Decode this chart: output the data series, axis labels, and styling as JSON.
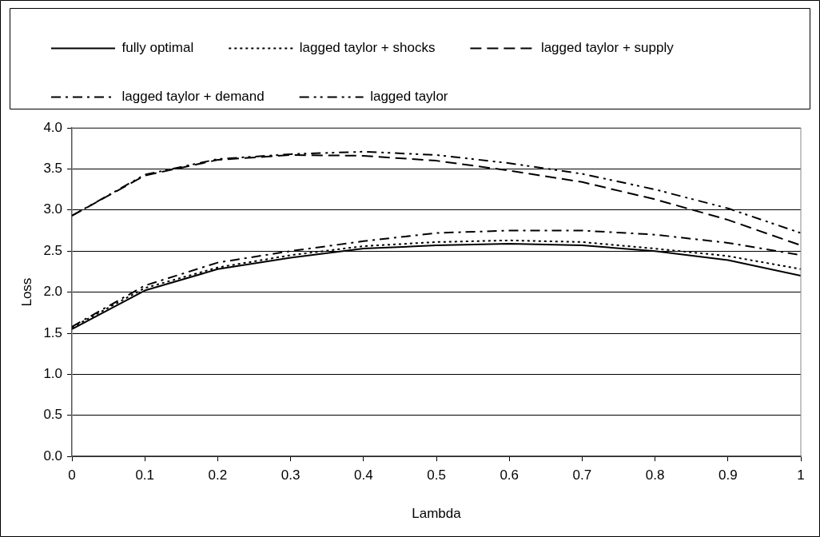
{
  "chart_data": {
    "type": "line",
    "xlabel": "Lambda",
    "ylabel": "Loss",
    "x": [
      0,
      0.1,
      0.2,
      0.3,
      0.4,
      0.5,
      0.6,
      0.7,
      0.8,
      0.9,
      1
    ],
    "xlim": [
      0,
      1
    ],
    "xticks": [
      0,
      0.1,
      0.2,
      0.3,
      0.4,
      0.5,
      0.6,
      0.7,
      0.8,
      0.9,
      1
    ],
    "ylim": [
      0,
      4
    ],
    "yticks": [
      {
        "value": 0,
        "label": "0.0"
      },
      {
        "value": 0.5,
        "label": "0.5"
      },
      {
        "value": 1,
        "label": "1.0"
      },
      {
        "value": 1.5,
        "label": "1.5"
      },
      {
        "value": 2,
        "label": "2.0"
      },
      {
        "value": 2.5,
        "label": "2.5"
      },
      {
        "value": 3,
        "label": "3.0"
      },
      {
        "value": 3.5,
        "label": "3.5"
      },
      {
        "value": 4,
        "label": "4.0"
      }
    ],
    "grid": "y",
    "legend": "top",
    "marker": "none",
    "series": [
      {
        "name": "fully optimal",
        "color": "#000000",
        "line_style": "solid",
        "values": [
          1.55,
          2.02,
          2.28,
          2.42,
          2.53,
          2.57,
          2.59,
          2.57,
          2.5,
          2.39,
          2.2
        ]
      },
      {
        "name": "lagged taylor + shocks",
        "color": "#000000",
        "line_style": "dotted",
        "values": [
          1.57,
          2.05,
          2.3,
          2.45,
          2.56,
          2.61,
          2.63,
          2.61,
          2.53,
          2.44,
          2.28
        ]
      },
      {
        "name": "lagged taylor + supply",
        "color": "#000000",
        "line_style": "dashed",
        "values": [
          2.93,
          3.42,
          3.61,
          3.67,
          3.66,
          3.6,
          3.48,
          3.34,
          3.13,
          2.88,
          2.57
        ]
      },
      {
        "name": "lagged taylor + demand",
        "color": "#000000",
        "line_style": "dashdot",
        "values": [
          1.58,
          2.08,
          2.36,
          2.5,
          2.62,
          2.72,
          2.75,
          2.75,
          2.7,
          2.6,
          2.45
        ]
      },
      {
        "name": "lagged taylor",
        "color": "#000000",
        "line_style": "dashdotdot",
        "values": [
          2.93,
          3.43,
          3.62,
          3.68,
          3.71,
          3.67,
          3.57,
          3.44,
          3.25,
          3.02,
          2.72
        ]
      }
    ]
  }
}
